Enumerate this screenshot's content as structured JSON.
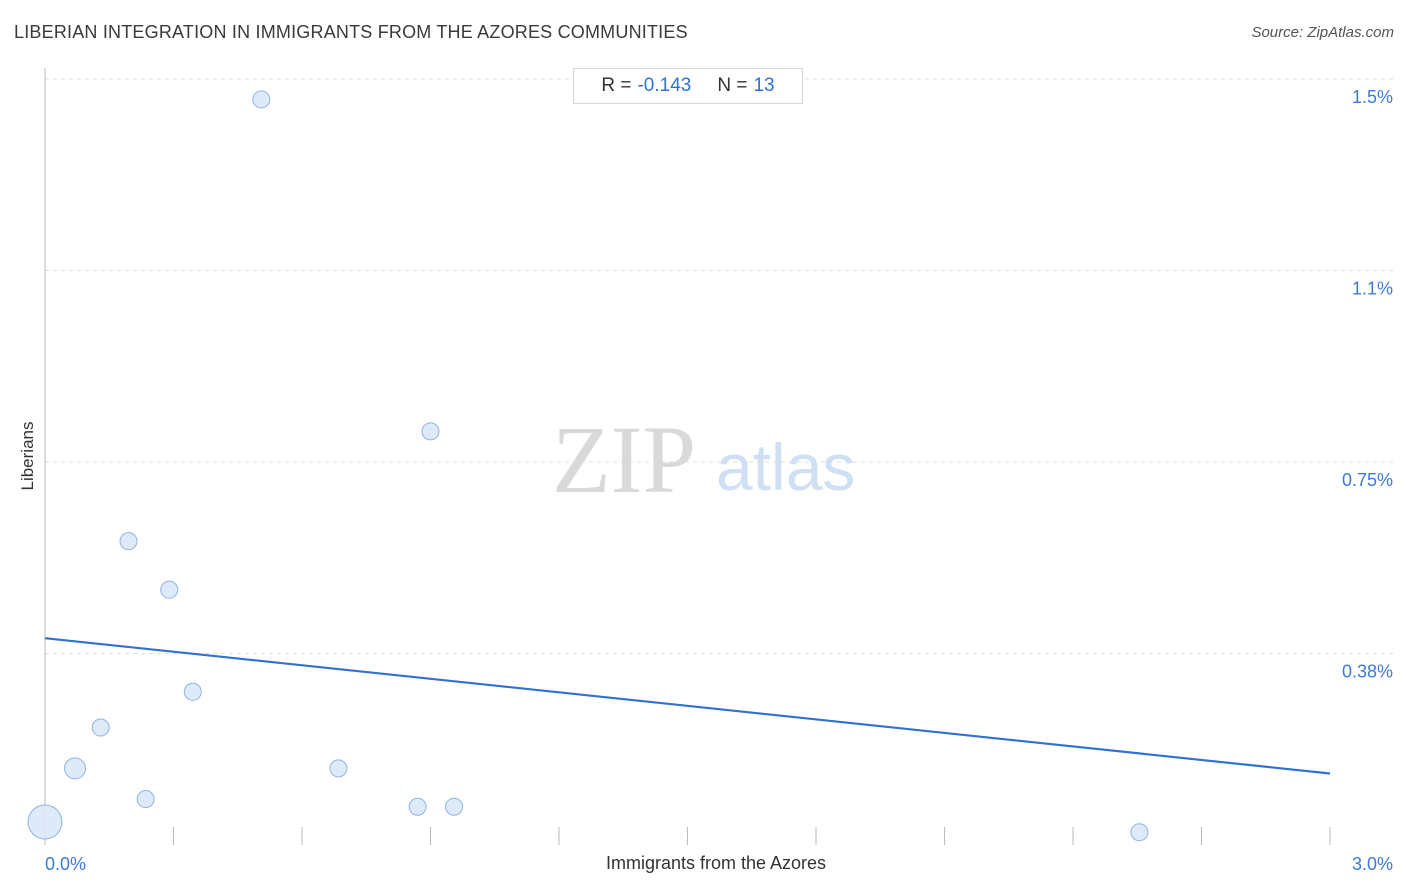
{
  "title": "LIBERIAN INTEGRATION IN IMMIGRANTS FROM THE AZORES COMMUNITIES",
  "source": "Source: ZipAtlas.com",
  "stats": {
    "r_label": "R =",
    "r_value": "-0.143",
    "n_label": "N =",
    "n_value": "13"
  },
  "watermark": {
    "zip": "ZIP",
    "atlas": "atlas"
  },
  "colors": {
    "accent": "#2f72d1",
    "point_fill": "#dce8f8",
    "point_stroke": "#8fb3e3",
    "grid": "#dddddd"
  },
  "chart_data": {
    "type": "scatter",
    "xlabel": "Immigrants from the Azores",
    "ylabel": "Liberians",
    "xlim": [
      0,
      3.0
    ],
    "ylim": [
      0,
      1.5
    ],
    "x_tick_labels": [
      {
        "value": 0,
        "label": "0.0%"
      },
      {
        "value": 3.0,
        "label": "3.0%"
      }
    ],
    "y_tick_labels": [
      {
        "value": 1.5,
        "label": "1.5%"
      },
      {
        "value": 1.125,
        "label": "1.1%"
      },
      {
        "value": 0.75,
        "label": "0.75%"
      },
      {
        "value": 0.375,
        "label": "0.38%"
      }
    ],
    "points": [
      {
        "x": 0.0,
        "y": 0.045,
        "size": "large"
      },
      {
        "x": 0.07,
        "y": 0.15,
        "size": "medium"
      },
      {
        "x": 0.13,
        "y": 0.23,
        "size": "small"
      },
      {
        "x": 0.195,
        "y": 0.595,
        "size": "small"
      },
      {
        "x": 0.235,
        "y": 0.09,
        "size": "small"
      },
      {
        "x": 0.29,
        "y": 0.5,
        "size": "small"
      },
      {
        "x": 0.345,
        "y": 0.3,
        "size": "small"
      },
      {
        "x": 0.505,
        "y": 1.46,
        "size": "small"
      },
      {
        "x": 0.685,
        "y": 0.15,
        "size": "small"
      },
      {
        "x": 0.87,
        "y": 0.075,
        "size": "small"
      },
      {
        "x": 0.9,
        "y": 0.81,
        "size": "small"
      },
      {
        "x": 0.955,
        "y": 0.075,
        "size": "small"
      },
      {
        "x": 2.555,
        "y": 0.025,
        "size": "small"
      }
    ],
    "trendline": {
      "x": [
        0,
        3.0
      ],
      "y": [
        0.405,
        0.14
      ]
    },
    "grid": true
  }
}
